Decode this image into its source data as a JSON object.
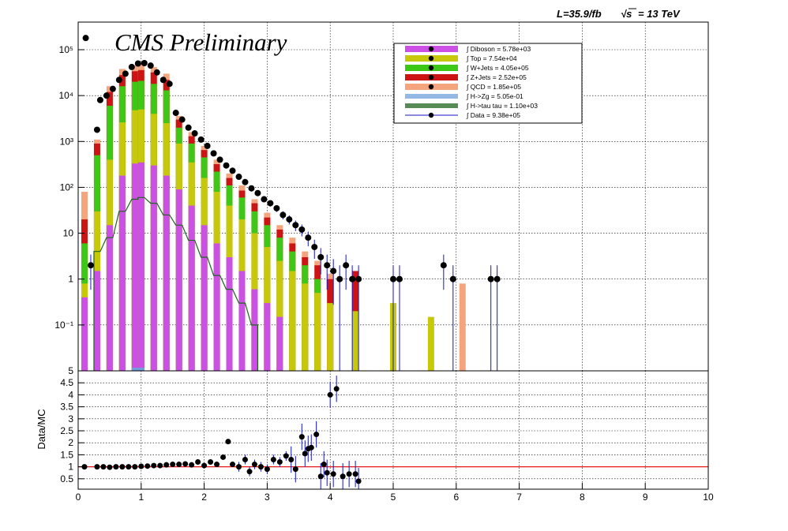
{
  "header": {
    "lumi": "L=35.9/fb",
    "energy_sqrt": "√s",
    "energy_value": "= 13 TeV",
    "watermark": "CMS Preliminary"
  },
  "chart_data": [
    {
      "type": "bar",
      "subtype": "stacked-histogram-log",
      "xlim": [
        0,
        10
      ],
      "ylim": [
        0.01,
        400000
      ],
      "yscale": "log",
      "grid": true,
      "legend_position": "top-right",
      "yticks": [
        {
          "value": 0.1,
          "label": "10⁻¹"
        },
        {
          "value": 1,
          "label": "1"
        },
        {
          "value": 10,
          "label": "10"
        },
        {
          "value": 100,
          "label": "10²"
        },
        {
          "value": 1000,
          "label": "10³"
        },
        {
          "value": 10000,
          "label": "10⁴"
        },
        {
          "value": 100000,
          "label": "10⁵"
        }
      ],
      "series": [
        {
          "name": "Diboson",
          "legend": "∫ Diboson = 5.78e+03",
          "color": "#cc4fe6",
          "points": [
            [
              0.1,
              0.4
            ],
            [
              0.3,
              1.5
            ],
            [
              0.5,
              15
            ],
            [
              0.7,
              180
            ],
            [
              0.9,
              330
            ],
            [
              1.0,
              350
            ],
            [
              1.2,
              300
            ],
            [
              1.4,
              180
            ],
            [
              1.6,
              90
            ],
            [
              1.8,
              40
            ],
            [
              2.0,
              15
            ],
            [
              2.2,
              6
            ],
            [
              2.4,
              3
            ],
            [
              2.6,
              1.5
            ],
            [
              2.8,
              0.6
            ],
            [
              3.0,
              0.3
            ],
            [
              3.2,
              0.15
            ]
          ]
        },
        {
          "name": "Top",
          "legend": "∫ Top = 7.54e+04",
          "color": "#c8c80a",
          "points": [
            [
              0.1,
              0.8
            ],
            [
              0.3,
              30
            ],
            [
              0.5,
              400
            ],
            [
              0.7,
              2600
            ],
            [
              0.9,
              4800
            ],
            [
              1.0,
              5000
            ],
            [
              1.2,
              4000
            ],
            [
              1.4,
              2500
            ],
            [
              1.6,
              900
            ],
            [
              1.8,
              350
            ],
            [
              2.0,
              160
            ],
            [
              2.2,
              80
            ],
            [
              2.4,
              40
            ],
            [
              2.6,
              20
            ],
            [
              2.8,
              10
            ],
            [
              3.0,
              5
            ],
            [
              3.2,
              2.5
            ],
            [
              3.4,
              1.5
            ],
            [
              3.6,
              0.8
            ],
            [
              3.8,
              0.5
            ],
            [
              4.0,
              0.3
            ],
            [
              4.4,
              0.2
            ],
            [
              5.0,
              0.3
            ],
            [
              5.6,
              0.15
            ]
          ]
        },
        {
          "name": "W+Jets",
          "legend": "∫ W+Jets = 4.05e+05",
          "color": "#3cc814",
          "points": [
            [
              0.1,
              6
            ],
            [
              0.3,
              500
            ],
            [
              0.5,
              6000
            ],
            [
              0.7,
              16000
            ],
            [
              0.9,
              20000
            ],
            [
              1.0,
              21000
            ],
            [
              1.2,
              18000
            ],
            [
              1.4,
              13000
            ],
            [
              1.6,
              2000
            ],
            [
              1.8,
              900
            ],
            [
              2.0,
              450
            ],
            [
              2.2,
              220
            ],
            [
              2.4,
              110
            ],
            [
              2.6,
              60
            ],
            [
              2.8,
              30
            ],
            [
              3.0,
              15
            ],
            [
              3.2,
              8
            ],
            [
              3.4,
              4
            ],
            [
              3.6,
              2
            ],
            [
              3.8,
              1
            ]
          ]
        },
        {
          "name": "Z+Jets",
          "legend": "∫ Z+Jets = 2.52e+05",
          "color": "#cc1414",
          "points": [
            [
              0.1,
              20
            ],
            [
              0.3,
              900
            ],
            [
              0.5,
              12000
            ],
            [
              0.7,
              28000
            ],
            [
              0.9,
              34000
            ],
            [
              1.0,
              36000
            ],
            [
              1.2,
              32000
            ],
            [
              1.4,
              22000
            ],
            [
              1.6,
              3000
            ],
            [
              1.8,
              1300
            ],
            [
              2.0,
              650
            ],
            [
              2.2,
              320
            ],
            [
              2.4,
              160
            ],
            [
              2.6,
              85
            ],
            [
              2.8,
              45
            ],
            [
              3.0,
              22
            ],
            [
              3.2,
              12
            ],
            [
              3.4,
              6
            ],
            [
              3.6,
              3
            ],
            [
              3.8,
              2
            ],
            [
              4.0,
              1
            ],
            [
              4.4,
              1.5
            ]
          ]
        },
        {
          "name": "QCD",
          "legend": "∫ QCD = 1.85e+05",
          "color": "#f5a57d",
          "points": [
            [
              0.1,
              80
            ],
            [
              0.3,
              1100
            ],
            [
              0.5,
              16000
            ],
            [
              0.7,
              38000
            ],
            [
              0.9,
              46000
            ],
            [
              1.0,
              48000
            ],
            [
              1.2,
              42000
            ],
            [
              1.4,
              30000
            ],
            [
              1.6,
              3600
            ],
            [
              1.8,
              1600
            ],
            [
              2.0,
              800
            ],
            [
              2.2,
              400
            ],
            [
              2.4,
              200
            ],
            [
              2.6,
              110
            ],
            [
              2.8,
              55
            ],
            [
              3.0,
              28
            ],
            [
              3.2,
              15
            ],
            [
              3.4,
              8
            ],
            [
              3.6,
              4
            ],
            [
              3.8,
              2.5
            ],
            [
              4.0,
              1.3
            ],
            [
              6.1,
              0.8
            ]
          ]
        },
        {
          "name": "H->Zg",
          "legend": "∫ H->Zg = 5.05e-01",
          "color": "#6fa0dc",
          "points": [
            [
              0.9,
              0.012
            ],
            [
              1.0,
              0.012
            ]
          ]
        },
        {
          "name": "H->tau tau",
          "legend": "∫ H->tau tau = 1.10e+03",
          "color": "#1e641e",
          "points": [
            [
              0.3,
              4
            ],
            [
              0.5,
              8
            ],
            [
              0.7,
              30
            ],
            [
              0.9,
              55
            ],
            [
              1.0,
              60
            ],
            [
              1.2,
              45
            ],
            [
              1.4,
              25
            ],
            [
              1.6,
              15
            ],
            [
              1.8,
              7
            ],
            [
              2.0,
              3
            ],
            [
              2.2,
              1.2
            ],
            [
              2.4,
              0.6
            ],
            [
              2.6,
              0.3
            ],
            [
              2.8,
              0.1
            ]
          ]
        }
      ],
      "data": {
        "name": "Data",
        "legend": "∫ Data = 9.38e+05",
        "color": "#000000",
        "err_color": "#1414cc",
        "points": [
          [
            0.12,
            180000
          ],
          [
            0.2,
            2
          ],
          [
            0.3,
            1800
          ],
          [
            0.35,
            8000
          ],
          [
            0.45,
            10000
          ],
          [
            0.55,
            14000
          ],
          [
            0.65,
            22000
          ],
          [
            0.75,
            30000
          ],
          [
            0.85,
            42000
          ],
          [
            0.95,
            50000
          ],
          [
            1.05,
            51000
          ],
          [
            1.15,
            45000
          ],
          [
            1.25,
            32000
          ],
          [
            1.35,
            22000
          ],
          [
            1.45,
            18000
          ],
          [
            1.55,
            4200
          ],
          [
            1.65,
            3000
          ],
          [
            1.75,
            2000
          ],
          [
            1.85,
            1500
          ],
          [
            1.95,
            1100
          ],
          [
            2.05,
            800
          ],
          [
            2.15,
            550
          ],
          [
            2.25,
            400
          ],
          [
            2.35,
            300
          ],
          [
            2.45,
            230
          ],
          [
            2.55,
            170
          ],
          [
            2.65,
            130
          ],
          [
            2.75,
            95
          ],
          [
            2.85,
            75
          ],
          [
            2.95,
            55
          ],
          [
            3.05,
            45
          ],
          [
            3.15,
            35
          ],
          [
            3.25,
            25
          ],
          [
            3.35,
            20
          ],
          [
            3.45,
            15
          ],
          [
            3.55,
            12
          ],
          [
            3.65,
            8
          ],
          [
            3.75,
            5
          ],
          [
            3.85,
            3
          ],
          [
            3.95,
            2
          ],
          [
            4.05,
            1.5
          ],
          [
            4.15,
            1
          ],
          [
            4.25,
            2
          ],
          [
            4.35,
            1
          ],
          [
            4.45,
            1
          ],
          [
            5.0,
            1
          ],
          [
            5.1,
            1
          ],
          [
            5.8,
            2
          ],
          [
            5.95,
            1
          ],
          [
            6.55,
            1
          ],
          [
            6.65,
            1
          ]
        ]
      }
    },
    {
      "type": "scatter",
      "subtype": "ratio-panel",
      "ylabel": "Data/MC",
      "xlim": [
        0,
        10
      ],
      "ylim": [
        0,
        5
      ],
      "grid": true,
      "reference_line": {
        "y": 1,
        "color": "#e61414"
      },
      "xticks": [
        "0",
        "1",
        "2",
        "3",
        "4",
        "5",
        "6",
        "7",
        "8",
        "9",
        "10"
      ],
      "yticks": [
        "0.5",
        "1",
        "1.5",
        "2",
        "2.5",
        "3",
        "3.5",
        "4",
        "4.5",
        "5"
      ],
      "points": [
        [
          0.1,
          1.0
        ],
        [
          0.3,
          1.0
        ],
        [
          0.4,
          1.0
        ],
        [
          0.5,
          0.98
        ],
        [
          0.6,
          1.0
        ],
        [
          0.7,
          1.0
        ],
        [
          0.8,
          1.0
        ],
        [
          0.9,
          1.0
        ],
        [
          1.0,
          1.02
        ],
        [
          1.1,
          1.03
        ],
        [
          1.2,
          1.05
        ],
        [
          1.3,
          1.05
        ],
        [
          1.4,
          1.08
        ],
        [
          1.5,
          1.1
        ],
        [
          1.6,
          1.1
        ],
        [
          1.7,
          1.12
        ],
        [
          1.8,
          1.08
        ],
        [
          1.9,
          1.2
        ],
        [
          2.0,
          1.05
        ],
        [
          2.1,
          1.2
        ],
        [
          2.2,
          1.1
        ],
        [
          2.3,
          1.4
        ],
        [
          2.38,
          2.05
        ],
        [
          2.45,
          1.1
        ],
        [
          2.55,
          1.0
        ],
        [
          2.65,
          1.3
        ],
        [
          2.72,
          0.8
        ],
        [
          2.8,
          1.1
        ],
        [
          2.9,
          1.0
        ],
        [
          3.0,
          0.9
        ],
        [
          3.1,
          1.3
        ],
        [
          3.2,
          1.2
        ],
        [
          3.3,
          1.45
        ],
        [
          3.38,
          1.3
        ],
        [
          3.45,
          0.9
        ],
        [
          3.55,
          2.25
        ],
        [
          3.6,
          1.55
        ],
        [
          3.65,
          1.75
        ],
        [
          3.7,
          1.8
        ],
        [
          3.78,
          2.35
        ],
        [
          3.85,
          0.6
        ],
        [
          3.9,
          1.1
        ],
        [
          3.95,
          0.75
        ],
        [
          4.0,
          4.0
        ],
        [
          4.05,
          0.7
        ],
        [
          4.1,
          4.25
        ],
        [
          4.2,
          0.6
        ],
        [
          4.3,
          0.7
        ],
        [
          4.4,
          0.7
        ],
        [
          4.45,
          0.4
        ]
      ]
    }
  ]
}
